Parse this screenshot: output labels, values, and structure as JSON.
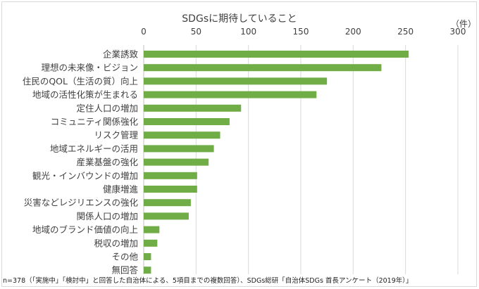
{
  "chart_data": {
    "type": "bar",
    "orientation": "horizontal",
    "title": "SDGsに期待していること",
    "unit_label": "（件）",
    "categories": [
      "企業誘致",
      "理想の未来像・ビジョン",
      "住民のQOL（生活の質）向上",
      "地域の活性化策が生まれる",
      "定住人口の増加",
      "コミュニティ関係強化",
      "リスク管理",
      "地域エネルギーの活用",
      "産業基盤の強化",
      "観光・インバウンドの増加",
      "健康増進",
      "災害などレジリエンスの強化",
      "関係人口の増加",
      "地域のブランド価値の向上",
      "税収の増加",
      "その他",
      "無回答"
    ],
    "values": [
      253,
      227,
      175,
      165,
      93,
      82,
      73,
      67,
      62,
      51,
      51,
      45,
      43,
      15,
      13,
      7,
      7
    ],
    "xlim": [
      0,
      300
    ],
    "xticks": [
      0,
      50,
      100,
      150,
      200,
      250,
      300
    ],
    "xticks_position": "top",
    "grid": true,
    "bar_color": "#70ad47",
    "grid_color": "#d9d9d9",
    "footnote": "n=378（「実施中」「検討中」と回答した自治体による、5項目までの複数回答）、SDGs総研「自治体SDGs 首長アンケート（2019年）」"
  }
}
